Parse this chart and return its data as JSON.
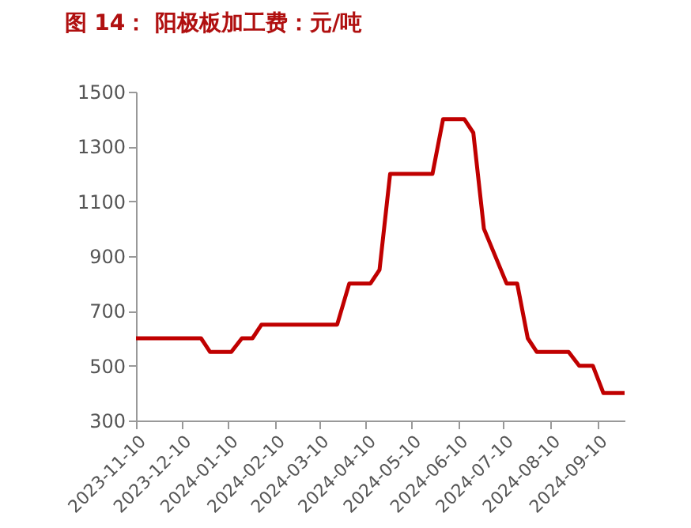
{
  "chart_data": {
    "type": "line",
    "title": "图 14： 阳极板加工费：元/吨",
    "x": [
      "2023-11-10",
      "2023-12-23",
      "2023-12-29",
      "2024-01-12",
      "2024-01-19",
      "2024-01-26",
      "2024-02-01",
      "2024-03-22",
      "2024-03-30",
      "2024-04-13",
      "2024-04-19",
      "2024-04-26",
      "2024-05-24",
      "2024-05-31",
      "2024-06-14",
      "2024-06-20",
      "2024-06-27",
      "2024-07-12",
      "2024-07-19",
      "2024-07-26",
      "2024-08-01",
      "2024-08-22",
      "2024-08-29",
      "2024-09-07",
      "2024-09-14",
      "2024-09-28"
    ],
    "series": [
      {
        "color": "#c00000",
        "values": [
          600,
          600,
          550,
          550,
          600,
          600,
          650,
          650,
          800,
          800,
          850,
          1200,
          1200,
          1400,
          1400,
          1350,
          1000,
          800,
          800,
          600,
          550,
          550,
          500,
          500,
          400,
          400
        ]
      }
    ],
    "xlim": [
      "2023-11-10",
      "2024-09-28"
    ],
    "xticks": [
      "2023-11-10",
      "2023-12-10",
      "2024-01-10",
      "2024-02-10",
      "2024-03-10",
      "2024-04-10",
      "2024-05-10",
      "2024-06-10",
      "2024-07-10",
      "2024-08-10",
      "2024-09-10"
    ],
    "ylim": [
      300,
      1500
    ],
    "yticks": [
      300,
      500,
      700,
      900,
      1100,
      1300,
      1500
    ],
    "grid": false,
    "legend": false,
    "marker": "none",
    "line_style": "solid"
  }
}
